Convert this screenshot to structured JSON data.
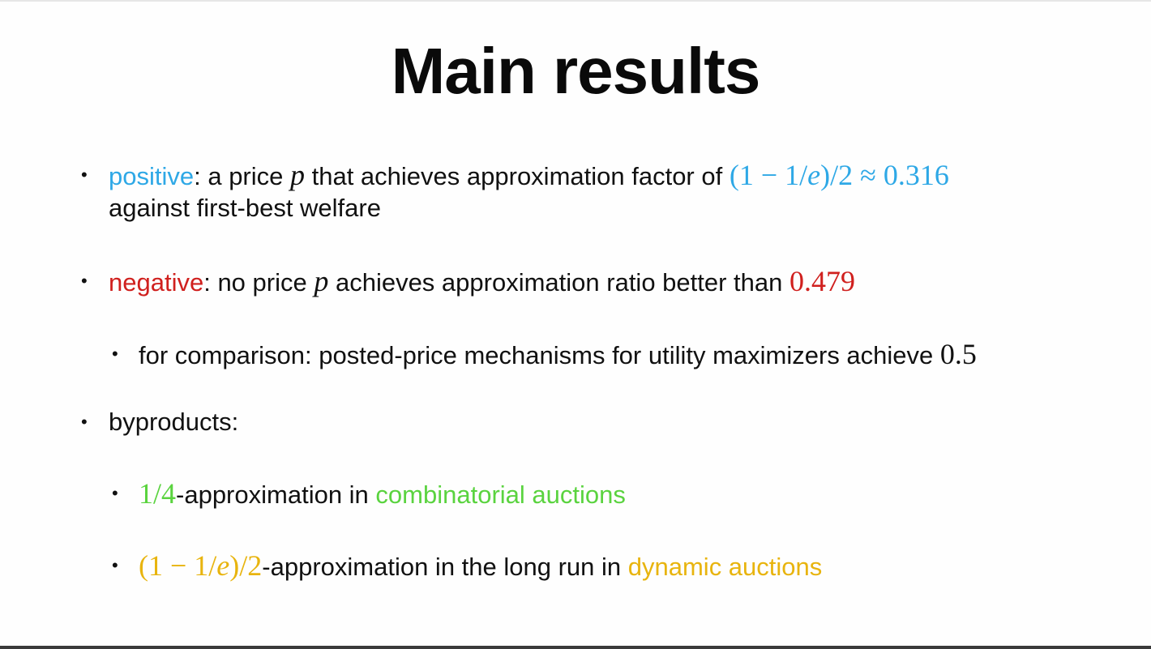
{
  "slide": {
    "title": "Main results",
    "bullets": {
      "positive": {
        "label": "positive",
        "text_a": ": a price ",
        "var": "p",
        "text_b": " that achieves approximation factor of ",
        "math": "(1 − 1/e)/2 ≈ 0.316",
        "line2": "against first-best welfare"
      },
      "negative": {
        "label": "negative",
        "text_a": ": no price ",
        "var": "p",
        "text_b": " achieves approximation ratio better than ",
        "math": "0.479"
      },
      "comparison": {
        "text": "for comparison: posted-price mechanisms for utility maximizers achieve ",
        "math": "0.5"
      },
      "byproducts": {
        "text": "byproducts:"
      },
      "combinatorial": {
        "math": "1/4",
        "text": "-approximation in ",
        "highlight": "combinatorial auctions"
      },
      "dynamic": {
        "math": "(1 − 1/e)/2",
        "text": "-approximation in the long run in ",
        "highlight": "dynamic auctions"
      }
    },
    "colors": {
      "positive": "#2ea8e6",
      "negative": "#d0201e",
      "combinatorial": "#5ad33f",
      "dynamic": "#e8b40e"
    }
  }
}
